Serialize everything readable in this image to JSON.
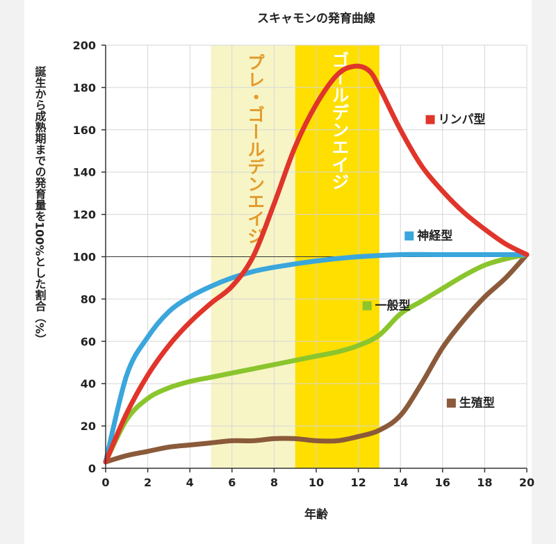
{
  "chart_data": {
    "type": "line",
    "title": "スキャモンの発育曲線",
    "xlabel": "年齢",
    "ylabel": "誕生から成熟期までの発育量を100%とした割合（%）",
    "xlim": [
      0,
      20
    ],
    "ylim": [
      0,
      200
    ],
    "x_ticks": [
      0,
      2,
      4,
      6,
      8,
      10,
      12,
      14,
      16,
      18,
      20
    ],
    "y_ticks": [
      0,
      20,
      40,
      60,
      80,
      100,
      120,
      140,
      160,
      180,
      200
    ],
    "grid": true,
    "reference_line": 100,
    "bands": [
      {
        "label": "プレ・ゴールデンエイジ",
        "from": 5,
        "to": 9,
        "color": "#f7f5c6",
        "text_color": "#e39b2a"
      },
      {
        "label": "ゴールデンエイジ",
        "from": 9,
        "to": 13,
        "color": "#fedf00",
        "text_color": "#ffffff"
      }
    ],
    "series": [
      {
        "name": "リンパ型",
        "color": "#e0352b",
        "legend_x": 15.2,
        "legend_y": 163,
        "points": [
          [
            0,
            3
          ],
          [
            1,
            26
          ],
          [
            2,
            44
          ],
          [
            3,
            58
          ],
          [
            4,
            69
          ],
          [
            5,
            78
          ],
          [
            6,
            86
          ],
          [
            7,
            100
          ],
          [
            8,
            125
          ],
          [
            9,
            152
          ],
          [
            10,
            172
          ],
          [
            11,
            186
          ],
          [
            11.8,
            190
          ],
          [
            12.5,
            188
          ],
          [
            13,
            180
          ],
          [
            14,
            160
          ],
          [
            15,
            143
          ],
          [
            16,
            131
          ],
          [
            17,
            121
          ],
          [
            18,
            113
          ],
          [
            19,
            106
          ],
          [
            20,
            101
          ]
        ]
      },
      {
        "name": "神経型",
        "color": "#3aa6dc",
        "legend_x": 14.2,
        "legend_y": 108,
        "points": [
          [
            0,
            3
          ],
          [
            1,
            44
          ],
          [
            2,
            62
          ],
          [
            3,
            74
          ],
          [
            4,
            81
          ],
          [
            5,
            86
          ],
          [
            6,
            90
          ],
          [
            7,
            93
          ],
          [
            8,
            95
          ],
          [
            10,
            98
          ],
          [
            12,
            100
          ],
          [
            14,
            101
          ],
          [
            16,
            101
          ],
          [
            18,
            101
          ],
          [
            20,
            101
          ]
        ]
      },
      {
        "name": "一般型",
        "color": "#8bc52e",
        "legend_x": 12.2,
        "legend_y": 75,
        "points": [
          [
            0,
            3
          ],
          [
            1,
            23
          ],
          [
            2,
            33
          ],
          [
            3,
            38
          ],
          [
            4,
            41
          ],
          [
            5,
            43
          ],
          [
            6,
            45
          ],
          [
            7,
            47
          ],
          [
            8,
            49
          ],
          [
            9,
            51
          ],
          [
            10,
            53
          ],
          [
            11,
            55
          ],
          [
            12,
            58
          ],
          [
            13,
            63
          ],
          [
            14,
            73
          ],
          [
            15,
            79
          ],
          [
            16,
            85
          ],
          [
            17,
            91
          ],
          [
            18,
            96
          ],
          [
            19,
            99
          ],
          [
            20,
            101
          ]
        ]
      },
      {
        "name": "生殖型",
        "color": "#8a5a3a",
        "legend_x": 16.2,
        "legend_y": 29,
        "points": [
          [
            0,
            3
          ],
          [
            1,
            6
          ],
          [
            2,
            8
          ],
          [
            3,
            10
          ],
          [
            4,
            11
          ],
          [
            5,
            12
          ],
          [
            6,
            13
          ],
          [
            7,
            13
          ],
          [
            8,
            14
          ],
          [
            9,
            14
          ],
          [
            10,
            13
          ],
          [
            11,
            13
          ],
          [
            12,
            15
          ],
          [
            13,
            18
          ],
          [
            14,
            25
          ],
          [
            15,
            40
          ],
          [
            16,
            57
          ],
          [
            17,
            70
          ],
          [
            18,
            81
          ],
          [
            19,
            90
          ],
          [
            20,
            101
          ]
        ]
      }
    ]
  }
}
